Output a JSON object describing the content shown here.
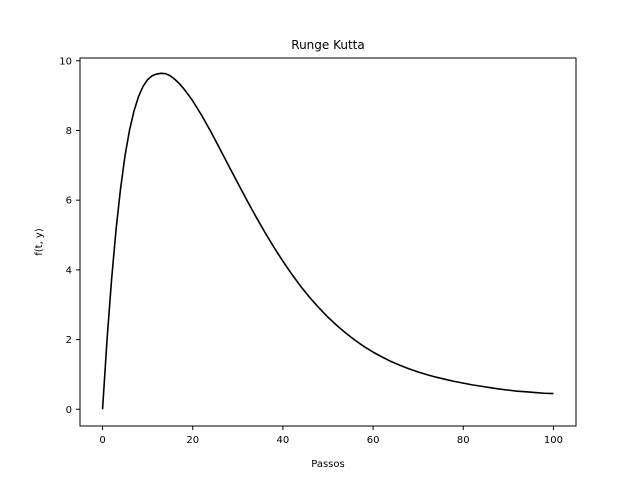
{
  "chart_data": {
    "type": "line",
    "title": "Runge Kutta",
    "xlabel": "Passos",
    "ylabel": "f(t, y)",
    "xlim": [
      -5,
      105
    ],
    "ylim": [
      -0.48,
      10.08
    ],
    "xticks": [
      0,
      20,
      40,
      60,
      80,
      100
    ],
    "yticks": [
      0,
      2,
      4,
      6,
      8,
      10
    ],
    "grid": false,
    "series": [
      {
        "color": "#000000",
        "x": [
          0,
          1,
          2,
          3,
          4,
          5,
          6,
          7,
          8,
          9,
          10,
          11,
          12,
          13,
          14,
          15,
          16,
          17,
          18,
          19,
          20,
          22,
          24,
          26,
          28,
          30,
          32,
          34,
          36,
          38,
          40,
          42,
          44,
          46,
          48,
          50,
          52,
          54,
          56,
          58,
          60,
          62,
          64,
          66,
          68,
          70,
          72,
          74,
          76,
          78,
          80,
          82,
          84,
          86,
          88,
          90,
          92,
          94,
          96,
          98,
          100
        ],
        "y": [
          0.0,
          2.0,
          3.72,
          5.16,
          6.34,
          7.29,
          8.02,
          8.57,
          8.98,
          9.27,
          9.46,
          9.57,
          9.62,
          9.64,
          9.63,
          9.57,
          9.47,
          9.35,
          9.2,
          9.03,
          8.85,
          8.43,
          7.97,
          7.48,
          6.98,
          6.49,
          6.0,
          5.53,
          5.08,
          4.65,
          4.25,
          3.87,
          3.52,
          3.2,
          2.91,
          2.64,
          2.4,
          2.18,
          1.98,
          1.8,
          1.64,
          1.5,
          1.37,
          1.26,
          1.16,
          1.07,
          0.99,
          0.92,
          0.86,
          0.8,
          0.75,
          0.7,
          0.66,
          0.62,
          0.58,
          0.55,
          0.52,
          0.5,
          0.48,
          0.46,
          0.45
        ]
      }
    ]
  }
}
